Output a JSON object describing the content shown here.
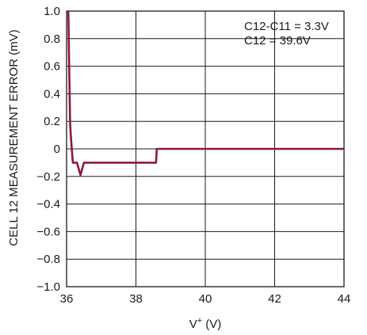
{
  "chart_data": {
    "type": "line",
    "title": "",
    "xlabel_main": "V",
    "xlabel_sup": "+",
    "xlabel_unit": " (V)",
    "ylabel": "CELL 12 MEASUREMENT ERROR (mV)",
    "xlim": [
      36,
      44
    ],
    "ylim": [
      -1.0,
      1.0
    ],
    "x_ticks": [
      "36",
      "38",
      "40",
      "42",
      "44"
    ],
    "y_ticks": [
      "1.0",
      "0.8",
      "0.6",
      "0.4",
      "0.2",
      "0",
      "−0.2",
      "−0.4",
      "−0.6",
      "−0.8",
      "−1.0"
    ],
    "grid": true,
    "annotations": [
      "C12-C11 = 3.3V",
      "C12 = 39.6V"
    ],
    "line_color": "#8b1a3a",
    "series": [
      {
        "x": [
          36.05,
          36.1,
          36.12,
          36.18,
          36.3,
          36.4,
          36.5,
          37.0,
          38.0,
          38.58,
          38.6,
          40.0,
          42.0,
          44.0
        ],
        "y": [
          1.0,
          0.2,
          0.1,
          -0.1,
          -0.1,
          -0.19,
          -0.1,
          -0.1,
          -0.1,
          -0.1,
          0.0,
          0.0,
          0.0,
          0.0
        ]
      }
    ]
  }
}
